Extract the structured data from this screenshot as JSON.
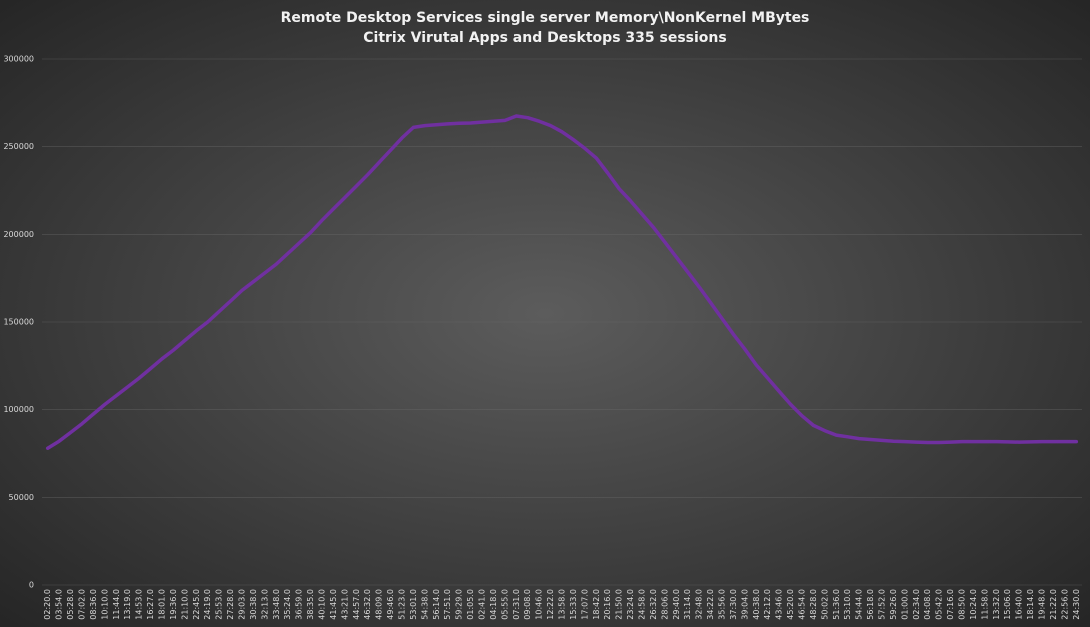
{
  "chart_data": {
    "type": "line",
    "title": "Remote Desktop Services single server Memory\\NonKernel MBytes",
    "subtitle": "Citrix Virutal Apps and Desktops 335 sessions",
    "categories": [
      "02:20.0",
      "03:54.0",
      "05:28.0",
      "07:02.0",
      "08:36.0",
      "10:10.0",
      "11:44.0",
      "13:19.0",
      "14:53.0",
      "16:27.0",
      "18:01.0",
      "19:36.0",
      "21:10.0",
      "22:45.0",
      "24:19.0",
      "25:53.0",
      "27:28.0",
      "29:03.0",
      "30:38.0",
      "32:13.0",
      "33:48.0",
      "35:24.0",
      "36:59.0",
      "38:35.0",
      "40:10.0",
      "41:45.0",
      "43:21.0",
      "44:57.0",
      "46:32.0",
      "48:09.0",
      "49:46.0",
      "51:23.0",
      "53:01.0",
      "54:38.0",
      "56:14.0",
      "57:51.0",
      "59:29.0",
      "01:05.0",
      "02:41.0",
      "04:18.0",
      "05:55.0",
      "07:31.0",
      "09:08.0",
      "10:46.0",
      "12:22.0",
      "13:58.0",
      "15:33.0",
      "17:07.0",
      "18:42.0",
      "20:16.0",
      "21:50.0",
      "23:24.0",
      "24:58.0",
      "26:32.0",
      "28:06.0",
      "29:40.0",
      "31:14.0",
      "32:48.0",
      "34:22.0",
      "35:56.0",
      "37:30.0",
      "39:04.0",
      "40:38.0",
      "42:12.0",
      "43:46.0",
      "45:20.0",
      "46:54.0",
      "48:28.0",
      "50:02.0",
      "51:36.0",
      "53:10.0",
      "54:44.0",
      "56:18.0",
      "57:52.0",
      "59:26.0",
      "01:00.0",
      "02:34.0",
      "04:08.0",
      "05:42.0",
      "07:16.0",
      "08:50.0",
      "10:24.0",
      "11:58.0",
      "13:32.0",
      "15:06.0",
      "16:40.0",
      "18:14.0",
      "19:48.0",
      "21:22.0",
      "22:56.0",
      "24:30.0"
    ],
    "values": [
      78000,
      82000,
      87000,
      92000,
      97500,
      103000,
      108000,
      113000,
      118000,
      123500,
      129000,
      134000,
      139500,
      145000,
      150000,
      156000,
      162000,
      168000,
      173000,
      178000,
      183000,
      189000,
      195000,
      201000,
      208000,
      214500,
      221000,
      227500,
      234000,
      241000,
      248000,
      255000,
      261000,
      262000,
      262500,
      263000,
      263300,
      263500,
      264000,
      264500,
      265000,
      267500,
      266500,
      264500,
      262000,
      258500,
      254000,
      249000,
      243500,
      235000,
      226000,
      219000,
      211500,
      204000,
      195500,
      187000,
      178500,
      170000,
      161000,
      152000,
      143000,
      134500,
      125500,
      118000,
      110500,
      103000,
      96500,
      91000,
      88000,
      85500,
      84500,
      83500,
      83000,
      82500,
      82000,
      81800,
      81500,
      81300,
      81300,
      81500,
      81800,
      81800,
      81800,
      81800,
      81600,
      81500,
      81600,
      81800,
      81800,
      81800,
      81800
    ],
    "color": "#7030a0",
    "ylim": [
      0,
      300000
    ],
    "yticks": [
      0,
      50000,
      100000,
      150000,
      200000,
      250000,
      300000
    ],
    "grid": true
  }
}
